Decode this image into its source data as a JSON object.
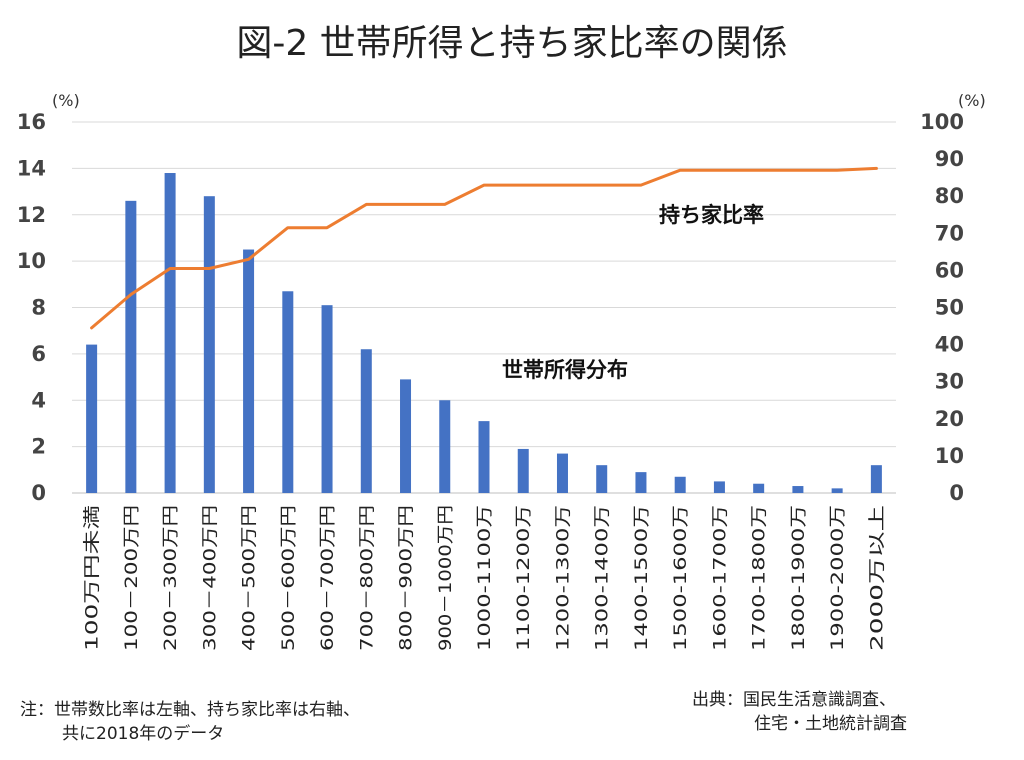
{
  "chart_data": {
    "type": "bar+line",
    "title": "図-2 世帯所得と持ち家比率の関係",
    "categories": [
      "100万円未満",
      "100－200万円",
      "200－300万円",
      "300－400万円",
      "400－500万円",
      "500－600万円",
      "600－700万円",
      "700－800万円",
      "800－900万円",
      "900－1000万円",
      "1000-1100万",
      "1100-1200万",
      "1200-1300万",
      "1300-1400万",
      "1400-1500万",
      "1500-1600万",
      "1600-1700万",
      "1700-1800万",
      "1800-1900万",
      "1900-2000万",
      "2000万以上"
    ],
    "series": [
      {
        "name": "世帯所得分布",
        "type": "bar",
        "axis": "left",
        "color": "#4472C4",
        "values": [
          6.4,
          12.6,
          13.8,
          12.8,
          10.5,
          8.7,
          8.1,
          6.2,
          4.9,
          4.0,
          3.1,
          1.9,
          1.7,
          1.2,
          0.9,
          0.7,
          0.5,
          0.4,
          0.3,
          0.2,
          1.2
        ]
      },
      {
        "name": "持ち家比率",
        "type": "line",
        "axis": "right",
        "color": "#ED7D31",
        "values": [
          44.5,
          53.5,
          60.5,
          60.5,
          63,
          71.5,
          71.5,
          77.8,
          77.8,
          77.8,
          83,
          83,
          83,
          83,
          83,
          87,
          87,
          87,
          87,
          87,
          87.5
        ]
      }
    ],
    "left_axis": {
      "unit": "(%)",
      "ylim": [
        0,
        16
      ],
      "ticks": [
        0,
        2,
        4,
        6,
        8,
        10,
        12,
        14,
        16
      ]
    },
    "right_axis": {
      "unit": "(%)",
      "ylim": [
        0,
        100
      ],
      "ticks": [
        0,
        10,
        20,
        30,
        40,
        50,
        60,
        70,
        80,
        90,
        100
      ]
    },
    "grid": true,
    "annotations": [
      "持ち家比率",
      "世帯所得分布"
    ]
  },
  "notes": {
    "note_line1": "注：世帯数比率は左軸、持ち家比率は右軸、",
    "note_line2": "共に2018年のデータ",
    "source_line1": "出典：国民生活意識調査、",
    "source_line2": "住宅・土地統計調査"
  }
}
